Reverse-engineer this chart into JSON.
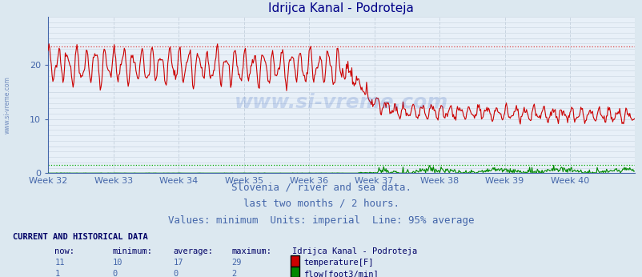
{
  "title": "Idrijca Kanal - Podroteja",
  "bg_color": "#dce8f0",
  "plot_bg_color": "#e8f0f8",
  "grid_color_v": "#c8d4e0",
  "grid_color_h": "#c8d4e0",
  "x_weeks": [
    "Week 32",
    "Week 33",
    "Week 34",
    "Week 35",
    "Week 36",
    "Week 37",
    "Week 38",
    "Week 39",
    "Week 40"
  ],
  "ylim": [
    0,
    29
  ],
  "yticks": [
    0,
    10,
    20
  ],
  "temp_color": "#cc0000",
  "flow_color": "#008800",
  "temp_hline_color": "#dd4444",
  "flow_hline_color": "#00aa00",
  "temp_hline_y": 23.5,
  "flow_hline_y": 1.5,
  "title_color": "#000088",
  "title_fontsize": 11,
  "axis_color": "#4466aa",
  "subtitle_color": "#4466aa",
  "subtitle_fontsize": 9,
  "table_header_color": "#000066",
  "table_value_color": "#4466aa",
  "table_label_color": "#000066",
  "n_points": 756,
  "watermark_color": "#2255bb",
  "watermark_alpha": 0.18,
  "temp_now": "11",
  "temp_min": "10",
  "temp_avg": "17",
  "temp_max": "29",
  "flow_now": "1",
  "flow_min": "0",
  "flow_avg": "0",
  "flow_max": "2",
  "subtitle1": "Slovenia / river and sea data.",
  "subtitle2": "last two months / 2 hours.",
  "subtitle3": "Values: minimum  Units: imperial  Line: 95% average"
}
